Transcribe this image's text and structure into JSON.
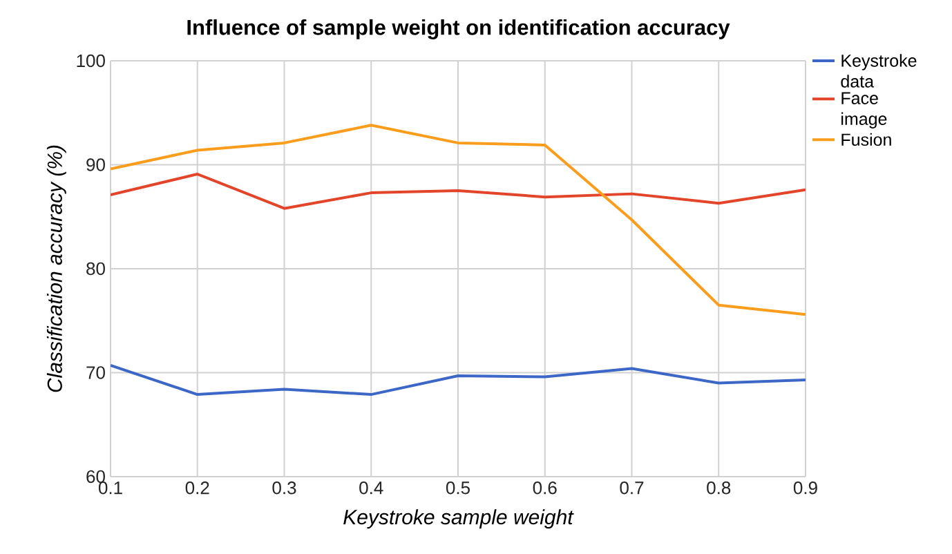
{
  "chart_data": {
    "type": "line",
    "title": "Influence of sample weight on identification accuracy",
    "xlabel": "Keystroke sample weight",
    "ylabel": "Classification accuracy (%)",
    "x": [
      0.1,
      0.2,
      0.3,
      0.4,
      0.5,
      0.6,
      0.7,
      0.8,
      0.9
    ],
    "series": [
      {
        "name": "Keystroke data",
        "color": "#3c67c6",
        "values": [
          70.7,
          67.9,
          68.4,
          67.9,
          69.7,
          69.6,
          70.4,
          69.0,
          69.3
        ]
      },
      {
        "name": "Face image",
        "color": "#e2452a",
        "values": [
          87.1,
          89.1,
          85.8,
          87.3,
          87.5,
          86.9,
          87.2,
          86.3,
          87.6
        ]
      },
      {
        "name": "Fusion",
        "color": "#fb9d1c",
        "values": [
          89.6,
          91.4,
          92.1,
          93.8,
          92.1,
          91.9,
          84.7,
          76.5,
          75.6
        ]
      }
    ],
    "xlim": [
      0.1,
      0.9
    ],
    "xticks": [
      0.1,
      0.2,
      0.3,
      0.4,
      0.5,
      0.6,
      0.7,
      0.8,
      0.9
    ],
    "ylim": [
      60,
      100
    ],
    "yticks": [
      60,
      70,
      80,
      90,
      100
    ],
    "grid": true,
    "legend": "right",
    "marker": "none",
    "line_style": "solid"
  }
}
